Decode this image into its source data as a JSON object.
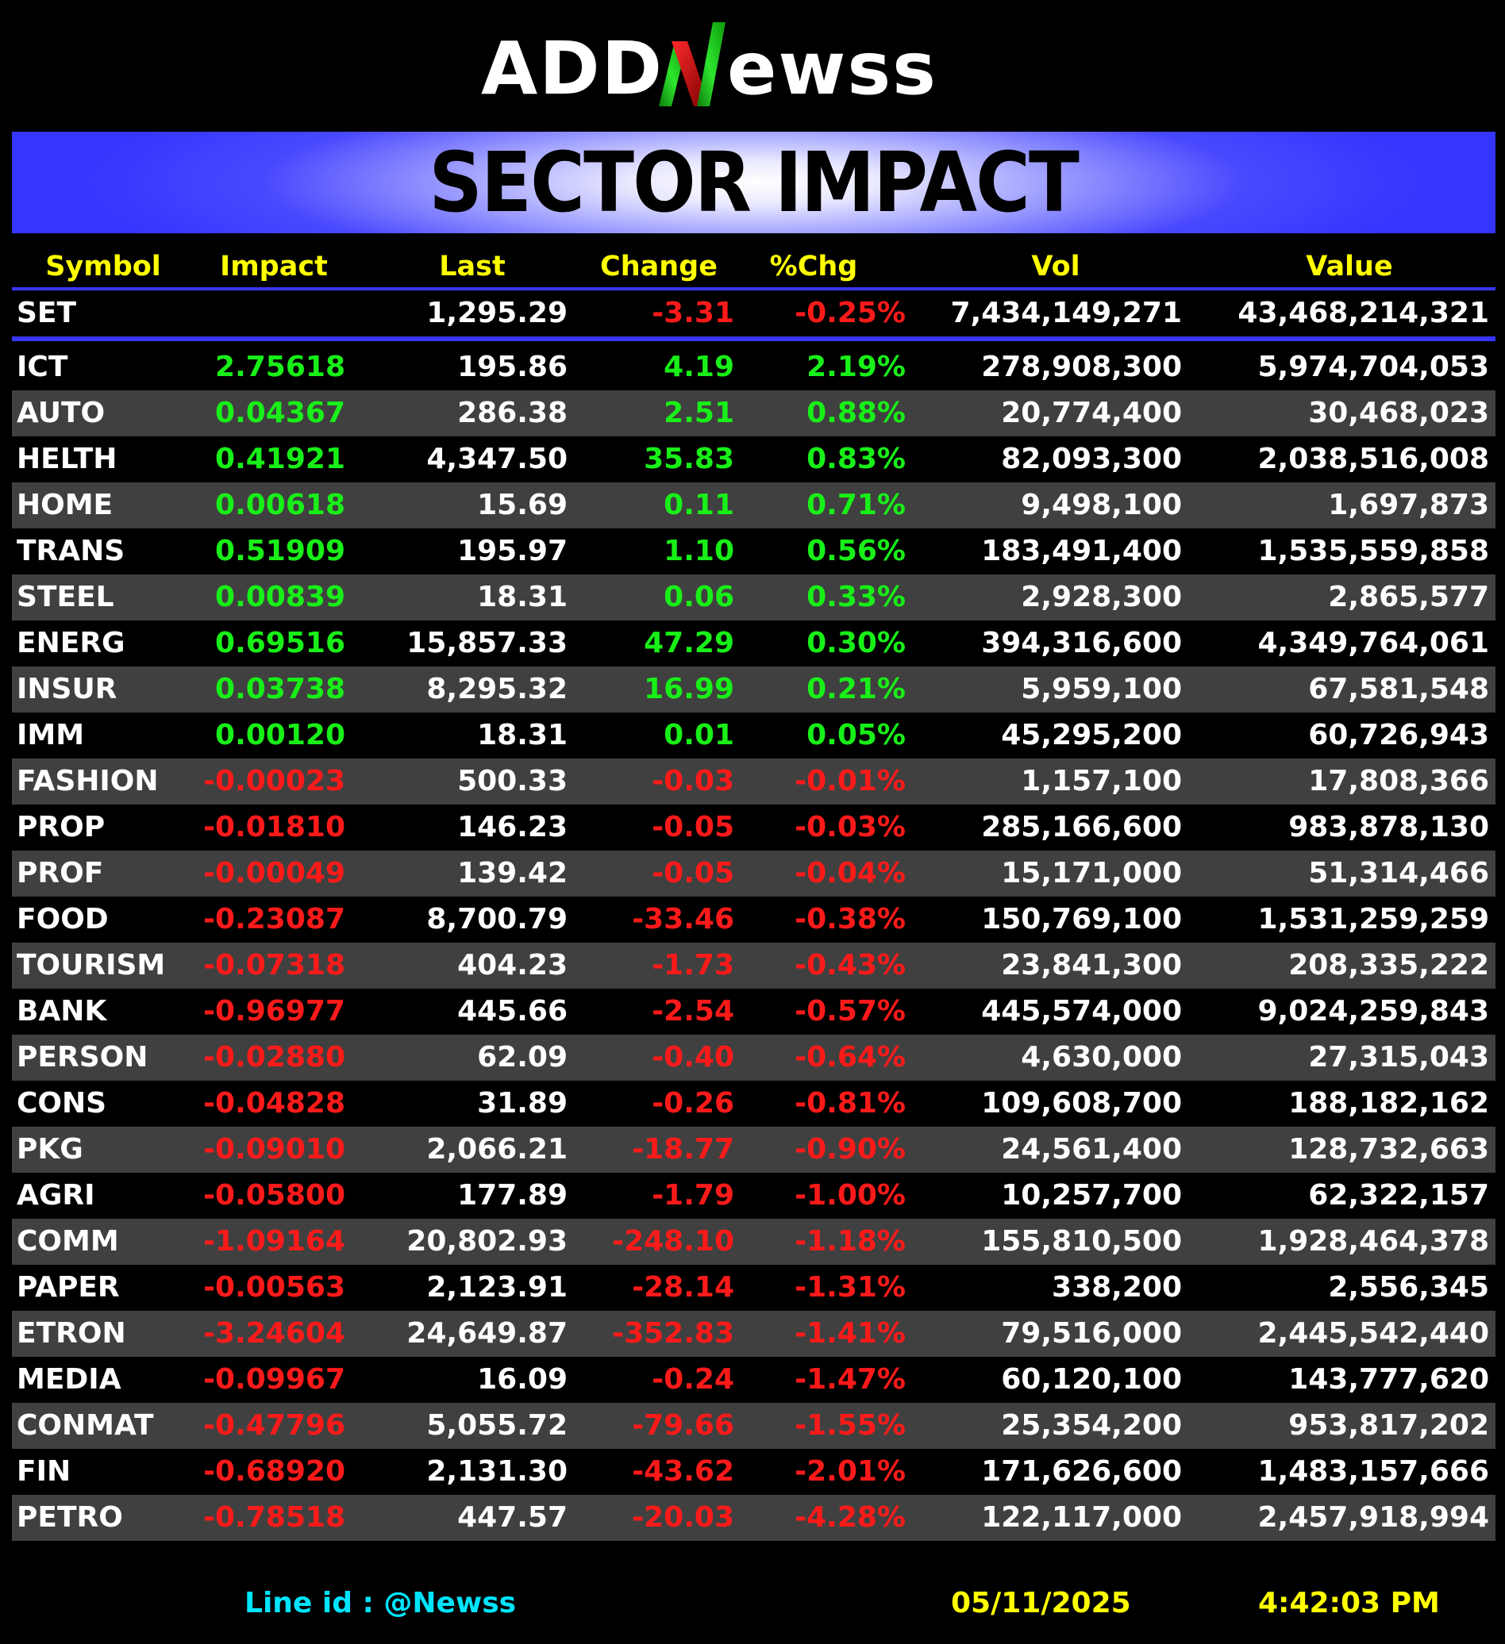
{
  "logo": {
    "text_left": "ADD",
    "text_mark": "N",
    "text_right": "ewss"
  },
  "title": "SECTOR IMPACT",
  "columns": [
    "Symbol",
    "Impact",
    "Last",
    "Change",
    "%Chg",
    "Vol",
    "Value"
  ],
  "index_row": {
    "symbol": "SET",
    "impact": "",
    "last": "1,295.29",
    "change": "-3.31",
    "pct": "-0.25%",
    "vol": "7,434,149,271",
    "value": "43,468,214,321",
    "dir": "neg"
  },
  "rows": [
    {
      "symbol": "ICT",
      "impact": "2.75618",
      "last": "195.86",
      "change": "4.19",
      "pct": "2.19%",
      "vol": "278,908,300",
      "value": "5,974,704,053",
      "dir": "pos"
    },
    {
      "symbol": "AUTO",
      "impact": "0.04367",
      "last": "286.38",
      "change": "2.51",
      "pct": "0.88%",
      "vol": "20,774,400",
      "value": "30,468,023",
      "dir": "pos"
    },
    {
      "symbol": "HELTH",
      "impact": "0.41921",
      "last": "4,347.50",
      "change": "35.83",
      "pct": "0.83%",
      "vol": "82,093,300",
      "value": "2,038,516,008",
      "dir": "pos"
    },
    {
      "symbol": "HOME",
      "impact": "0.00618",
      "last": "15.69",
      "change": "0.11",
      "pct": "0.71%",
      "vol": "9,498,100",
      "value": "1,697,873",
      "dir": "pos"
    },
    {
      "symbol": "TRANS",
      "impact": "0.51909",
      "last": "195.97",
      "change": "1.10",
      "pct": "0.56%",
      "vol": "183,491,400",
      "value": "1,535,559,858",
      "dir": "pos"
    },
    {
      "symbol": "STEEL",
      "impact": "0.00839",
      "last": "18.31",
      "change": "0.06",
      "pct": "0.33%",
      "vol": "2,928,300",
      "value": "2,865,577",
      "dir": "pos"
    },
    {
      "symbol": "ENERG",
      "impact": "0.69516",
      "last": "15,857.33",
      "change": "47.29",
      "pct": "0.30%",
      "vol": "394,316,600",
      "value": "4,349,764,061",
      "dir": "pos"
    },
    {
      "symbol": "INSUR",
      "impact": "0.03738",
      "last": "8,295.32",
      "change": "16.99",
      "pct": "0.21%",
      "vol": "5,959,100",
      "value": "67,581,548",
      "dir": "pos"
    },
    {
      "symbol": "IMM",
      "impact": "0.00120",
      "last": "18.31",
      "change": "0.01",
      "pct": "0.05%",
      "vol": "45,295,200",
      "value": "60,726,943",
      "dir": "pos"
    },
    {
      "symbol": "FASHION",
      "impact": "-0.00023",
      "last": "500.33",
      "change": "-0.03",
      "pct": "-0.01%",
      "vol": "1,157,100",
      "value": "17,808,366",
      "dir": "neg"
    },
    {
      "symbol": "PROP",
      "impact": "-0.01810",
      "last": "146.23",
      "change": "-0.05",
      "pct": "-0.03%",
      "vol": "285,166,600",
      "value": "983,878,130",
      "dir": "neg"
    },
    {
      "symbol": "PROF",
      "impact": "-0.00049",
      "last": "139.42",
      "change": "-0.05",
      "pct": "-0.04%",
      "vol": "15,171,000",
      "value": "51,314,466",
      "dir": "neg"
    },
    {
      "symbol": "FOOD",
      "impact": "-0.23087",
      "last": "8,700.79",
      "change": "-33.46",
      "pct": "-0.38%",
      "vol": "150,769,100",
      "value": "1,531,259,259",
      "dir": "neg"
    },
    {
      "symbol": "TOURISM",
      "impact": "-0.07318",
      "last": "404.23",
      "change": "-1.73",
      "pct": "-0.43%",
      "vol": "23,841,300",
      "value": "208,335,222",
      "dir": "neg"
    },
    {
      "symbol": "BANK",
      "impact": "-0.96977",
      "last": "445.66",
      "change": "-2.54",
      "pct": "-0.57%",
      "vol": "445,574,000",
      "value": "9,024,259,843",
      "dir": "neg"
    },
    {
      "symbol": "PERSON",
      "impact": "-0.02880",
      "last": "62.09",
      "change": "-0.40",
      "pct": "-0.64%",
      "vol": "4,630,000",
      "value": "27,315,043",
      "dir": "neg"
    },
    {
      "symbol": "CONS",
      "impact": "-0.04828",
      "last": "31.89",
      "change": "-0.26",
      "pct": "-0.81%",
      "vol": "109,608,700",
      "value": "188,182,162",
      "dir": "neg"
    },
    {
      "symbol": "PKG",
      "impact": "-0.09010",
      "last": "2,066.21",
      "change": "-18.77",
      "pct": "-0.90%",
      "vol": "24,561,400",
      "value": "128,732,663",
      "dir": "neg"
    },
    {
      "symbol": "AGRI",
      "impact": "-0.05800",
      "last": "177.89",
      "change": "-1.79",
      "pct": "-1.00%",
      "vol": "10,257,700",
      "value": "62,322,157",
      "dir": "neg"
    },
    {
      "symbol": "COMM",
      "impact": "-1.09164",
      "last": "20,802.93",
      "change": "-248.10",
      "pct": "-1.18%",
      "vol": "155,810,500",
      "value": "1,928,464,378",
      "dir": "neg"
    },
    {
      "symbol": "PAPER",
      "impact": "-0.00563",
      "last": "2,123.91",
      "change": "-28.14",
      "pct": "-1.31%",
      "vol": "338,200",
      "value": "2,556,345",
      "dir": "neg"
    },
    {
      "symbol": "ETRON",
      "impact": "-3.24604",
      "last": "24,649.87",
      "change": "-352.83",
      "pct": "-1.41%",
      "vol": "79,516,000",
      "value": "2,445,542,440",
      "dir": "neg"
    },
    {
      "symbol": "MEDIA",
      "impact": "-0.09967",
      "last": "16.09",
      "change": "-0.24",
      "pct": "-1.47%",
      "vol": "60,120,100",
      "value": "143,777,620",
      "dir": "neg"
    },
    {
      "symbol": "CONMAT",
      "impact": "-0.47796",
      "last": "5,055.72",
      "change": "-79.66",
      "pct": "-1.55%",
      "vol": "25,354,200",
      "value": "953,817,202",
      "dir": "neg"
    },
    {
      "symbol": "FIN",
      "impact": "-0.68920",
      "last": "2,131.30",
      "change": "-43.62",
      "pct": "-2.01%",
      "vol": "171,626,600",
      "value": "1,483,157,666",
      "dir": "neg"
    },
    {
      "symbol": "PETRO",
      "impact": "-0.78518",
      "last": "447.57",
      "change": "-20.03",
      "pct": "-4.28%",
      "vol": "122,117,000",
      "value": "2,457,918,994",
      "dir": "neg"
    }
  ],
  "footer": {
    "line_id": "Line id  : @Newss",
    "date": "05/11/2025",
    "time": "4:42:03 PM"
  },
  "colors": {
    "background": "#000000",
    "banner": "#3535ff",
    "header_text": "#ffff00",
    "positive": "#18f018",
    "negative": "#ff1a1a",
    "footer_link": "#00e5ff",
    "row_alt": "#404040"
  }
}
